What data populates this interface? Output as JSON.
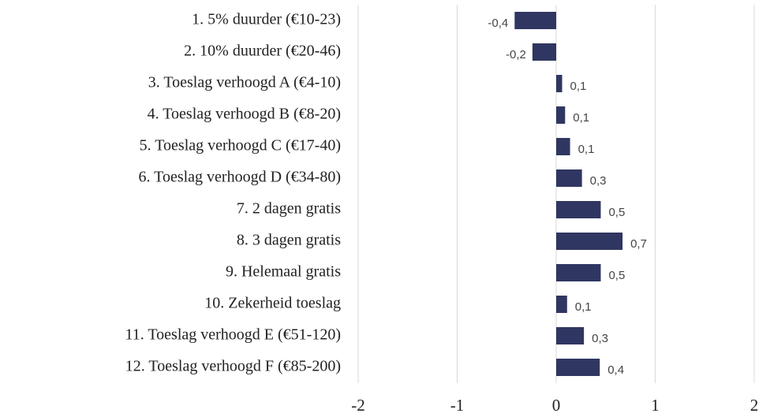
{
  "chart_data": {
    "type": "bar",
    "orientation": "horizontal",
    "categories": [
      "1. 5% duurder (€10-23)",
      "2. 10% duurder (€20-46)",
      "3. Toeslag verhoogd A (€4-10)",
      "4. Toeslag verhoogd B (€8-20)",
      "5. Toeslag verhoogd C (€17-40)",
      "6. Toeslag verhoogd D (€34-80)",
      "7. 2 dagen gratis",
      "8. 3 dagen gratis",
      "9. Helemaal gratis",
      "10. Zekerheid toeslag",
      "11. Toeslag verhoogd E (€51-120)",
      "12. Toeslag verhoogd F  (€85-200)"
    ],
    "values": [
      -0.42,
      -0.24,
      0.06,
      0.09,
      0.14,
      0.26,
      0.45,
      0.67,
      0.45,
      0.11,
      0.28,
      0.44
    ],
    "value_labels": [
      "-0,4",
      "-0,2",
      "0,1",
      "0,1",
      "0,1",
      "0,3",
      "0,5",
      "0,7",
      "0,5",
      "0,1",
      "0,3",
      "0,4"
    ],
    "color": "#2f3661",
    "xlim": [
      -2,
      2
    ],
    "xticks": [
      -2,
      -1,
      0,
      1,
      2
    ],
    "grid": true
  }
}
